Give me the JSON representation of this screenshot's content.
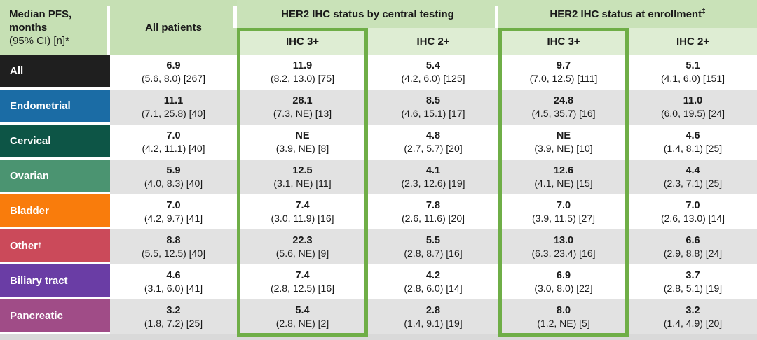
{
  "palette": {
    "header_green": "#c6e0b4",
    "group_band_green": "#c9e2b8",
    "subheader_green": "#deedd3",
    "highlight_border_green": "#6fae47",
    "row_alt_gray": "#e2e2e2",
    "bottom_strip_gray": "#d9d9d9"
  },
  "chart_data": {
    "type": "table",
    "corner": {
      "line1": "Median PFS,",
      "line2": "months",
      "line3": "(95% CI) [n]*"
    },
    "all_patients_label": "All patients",
    "groups": [
      {
        "label": "HER2 IHC status by central testing",
        "sup": "",
        "subcols": [
          "IHC 3+",
          "IHC 2+"
        ]
      },
      {
        "label": "HER2 IHC status at enrollment",
        "sup": "‡",
        "subcols": [
          "IHC 3+",
          "IHC 2+"
        ]
      }
    ],
    "columns": [
      "All patients",
      "IHC 3+ (central testing)",
      "IHC 2+ (central testing)",
      "IHC 3+ (at enrollment)",
      "IHC 2+ (at enrollment)"
    ],
    "highlighted_columns": [
      "IHC 3+ (central testing)",
      "IHC 3+ (at enrollment)"
    ],
    "rows": [
      {
        "label": "All",
        "sup": "",
        "color": "#1f1f1f",
        "cells": [
          {
            "median": "6.9",
            "ci": "(5.6, 8.0) [267]"
          },
          {
            "median": "11.9",
            "ci": "(8.2, 13.0) [75]"
          },
          {
            "median": "5.4",
            "ci": "(4.2, 6.0) [125]"
          },
          {
            "median": "9.7",
            "ci": "(7.0, 12.5) [111]"
          },
          {
            "median": "5.1",
            "ci": "(4.1, 6.0) [151]"
          }
        ]
      },
      {
        "label": "Endometrial",
        "sup": "",
        "color": "#1b6ca5",
        "cells": [
          {
            "median": "11.1",
            "ci": "(7.1, 25.8) [40]"
          },
          {
            "median": "28.1",
            "ci": "(7.3, NE) [13]"
          },
          {
            "median": "8.5",
            "ci": "(4.6, 15.1) [17]"
          },
          {
            "median": "24.8",
            "ci": "(4.5, 35.7) [16]"
          },
          {
            "median": "11.0",
            "ci": "(6.0, 19.5) [24]"
          }
        ]
      },
      {
        "label": "Cervical",
        "sup": "",
        "color": "#0d5546",
        "cells": [
          {
            "median": "7.0",
            "ci": "(4.2, 11.1) [40]"
          },
          {
            "median": "NE",
            "ci": "(3.9, NE) [8]"
          },
          {
            "median": "4.8",
            "ci": "(2.7, 5.7) [20]"
          },
          {
            "median": "NE",
            "ci": "(3.9, NE) [10]"
          },
          {
            "median": "4.6",
            "ci": "(1.4, 8.1) [25]"
          }
        ]
      },
      {
        "label": "Ovarian",
        "sup": "",
        "color": "#4b9471",
        "cells": [
          {
            "median": "5.9",
            "ci": "(4.0, 8.3) [40]"
          },
          {
            "median": "12.5",
            "ci": "(3.1, NE) [11]"
          },
          {
            "median": "4.1",
            "ci": "(2.3, 12.6) [19]"
          },
          {
            "median": "12.6",
            "ci": "(4.1, NE) [15]"
          },
          {
            "median": "4.4",
            "ci": "(2.3, 7.1) [25]"
          }
        ]
      },
      {
        "label": "Bladder",
        "sup": "",
        "color": "#f97c0c",
        "cells": [
          {
            "median": "7.0",
            "ci": "(4.2, 9.7) [41]"
          },
          {
            "median": "7.4",
            "ci": "(3.0, 11.9) [16]"
          },
          {
            "median": "7.8",
            "ci": "(2.6, 11.6) [20]"
          },
          {
            "median": "7.0",
            "ci": "(3.9, 11.5) [27]"
          },
          {
            "median": "7.0",
            "ci": "(2.6, 13.0) [14]"
          }
        ]
      },
      {
        "label": "Other",
        "sup": "†",
        "color": "#cb4a5a",
        "cells": [
          {
            "median": "8.8",
            "ci": "(5.5, 12.5) [40]"
          },
          {
            "median": "22.3",
            "ci": "(5.6, NE) [9]"
          },
          {
            "median": "5.5",
            "ci": "(2.8, 8.7) [16]"
          },
          {
            "median": "13.0",
            "ci": "(6.3, 23.4) [16]"
          },
          {
            "median": "6.6",
            "ci": "(2.9, 8.8) [24]"
          }
        ]
      },
      {
        "label": "Biliary tract",
        "sup": "",
        "color": "#6a3da5",
        "cells": [
          {
            "median": "4.6",
            "ci": "(3.1, 6.0) [41]"
          },
          {
            "median": "7.4",
            "ci": "(2.8, 12.5) [16]"
          },
          {
            "median": "4.2",
            "ci": "(2.8, 6.0) [14]"
          },
          {
            "median": "6.9",
            "ci": "(3.0, 8.0) [22]"
          },
          {
            "median": "3.7",
            "ci": "(2.8, 5.1) [19]"
          }
        ]
      },
      {
        "label": "Pancreatic",
        "sup": "",
        "color": "#a04c87",
        "cells": [
          {
            "median": "3.2",
            "ci": "(1.8, 7.2) [25]"
          },
          {
            "median": "5.4",
            "ci": "(2.8, NE) [2]"
          },
          {
            "median": "2.8",
            "ci": "(1.4, 9.1) [19]"
          },
          {
            "median": "8.0",
            "ci": "(1.2, NE) [5]"
          },
          {
            "median": "3.2",
            "ci": "(1.4, 4.9) [20]"
          }
        ]
      }
    ]
  }
}
